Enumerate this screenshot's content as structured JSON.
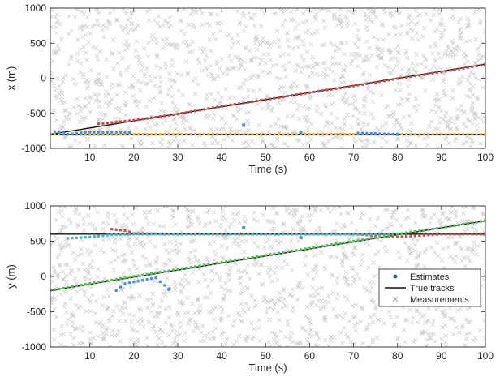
{
  "chart_data": [
    {
      "type": "scatter",
      "title": "",
      "xlabel": "Time (s)",
      "ylabel": "x (m)",
      "xlim": [
        1,
        100
      ],
      "ylim": [
        -1000,
        1000
      ],
      "x_ticks": [
        "10",
        "20",
        "30",
        "40",
        "50",
        "60",
        "70",
        "80",
        "90",
        "100"
      ],
      "y_ticks": [
        "-1000",
        "-500",
        "0",
        "500",
        "1000"
      ],
      "grid": false,
      "true_tracks": [
        {
          "name": "",
          "x": [
            1,
            100
          ],
          "y": [
            -800,
            200
          ]
        },
        {
          "name": "",
          "x": [
            1,
            100
          ],
          "y": [
            -800,
            -800
          ]
        }
      ],
      "estimates": [
        {
          "name": "",
          "color": "#c0504d",
          "x": [
            12,
            20,
            30,
            40,
            50,
            60,
            70,
            80,
            90,
            100
          ],
          "y": [
            -650,
            -600,
            -510,
            -400,
            -305,
            -205,
            -110,
            -5,
            90,
            195
          ]
        },
        {
          "name": "",
          "color": "#e3b345",
          "x": [
            1,
            10,
            20,
            30,
            40,
            50,
            60,
            70,
            80,
            90,
            100
          ],
          "y": [
            -800,
            -805,
            -800,
            -800,
            -800,
            -802,
            -800,
            -800,
            -800,
            -800,
            -800
          ]
        },
        {
          "name": "",
          "color": "#4a90d9",
          "x": [
            2,
            5,
            9,
            15,
            19,
            45,
            58,
            71,
            80
          ],
          "y": [
            -760,
            -800,
            -770,
            -770,
            -770,
            -670,
            -770,
            -780,
            -800
          ]
        }
      ]
    },
    {
      "type": "scatter",
      "title": "",
      "xlabel": "Time (s)",
      "ylabel": "y (m)",
      "xlim": [
        1,
        100
      ],
      "ylim": [
        -1000,
        1000
      ],
      "x_ticks": [
        "10",
        "20",
        "30",
        "40",
        "50",
        "60",
        "70",
        "80",
        "90",
        "100"
      ],
      "y_ticks": [
        "-1000",
        "-500",
        "0",
        "500",
        "1000"
      ],
      "grid": false,
      "true_tracks": [
        {
          "name": "",
          "x": [
            1,
            100
          ],
          "y": [
            -200,
            790
          ]
        },
        {
          "name": "",
          "x": [
            1,
            100
          ],
          "y": [
            600,
            600
          ]
        }
      ],
      "estimates": [
        {
          "name": "",
          "color": "#c0504d",
          "x": [
            15,
            18,
            20,
            30,
            40,
            50,
            60,
            70,
            80,
            90,
            100
          ],
          "y": [
            670,
            650,
            610,
            600,
            600,
            600,
            600,
            600,
            560,
            600,
            600
          ]
        },
        {
          "name": "",
          "color": "#46b4c8",
          "x": [
            5,
            10,
            15,
            20,
            30,
            40,
            50,
            60,
            70,
            80
          ],
          "y": [
            540,
            560,
            590,
            600,
            600,
            600,
            600,
            600,
            600,
            600
          ]
        },
        {
          "name": "",
          "color": "#5cb85c",
          "x": [
            1,
            10,
            20,
            30,
            40,
            50,
            60,
            70,
            80,
            90,
            100
          ],
          "y": [
            -200,
            -100,
            0,
            100,
            200,
            300,
            400,
            500,
            600,
            690,
            790
          ]
        },
        {
          "name": "",
          "color": "#4a90d9",
          "x": [
            16,
            18,
            25,
            28,
            45,
            58
          ],
          "y": [
            -200,
            -100,
            -20,
            -180,
            690,
            550
          ]
        }
      ],
      "legend": {
        "position": "lower-right",
        "entries": [
          "Estimates",
          "True tracks",
          "Measurements"
        ]
      }
    }
  ]
}
